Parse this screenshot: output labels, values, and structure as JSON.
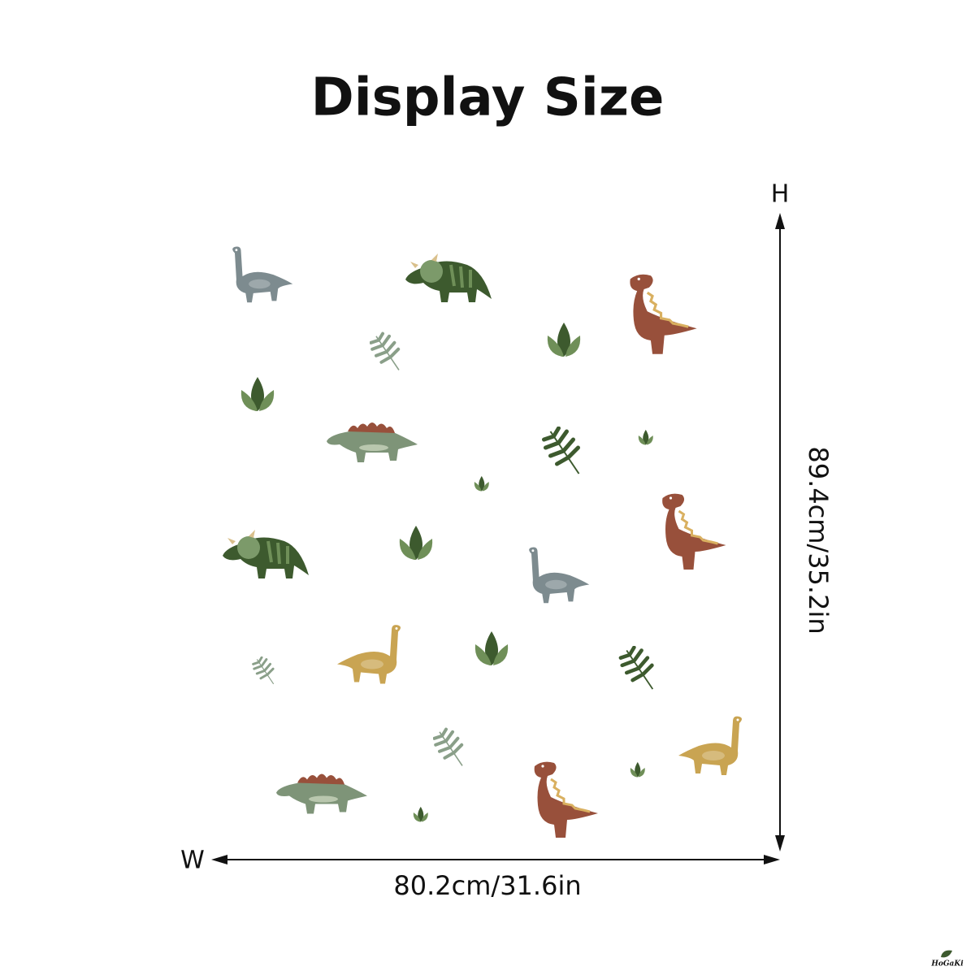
{
  "header": {
    "title": "Display Size"
  },
  "dimensions": {
    "height_letter": "H",
    "height_label": "89.4cm/35.2in",
    "width_letter": "W",
    "width_label": "80.2cm/31.6in"
  },
  "brand": {
    "name": "HoGaKi"
  }
}
